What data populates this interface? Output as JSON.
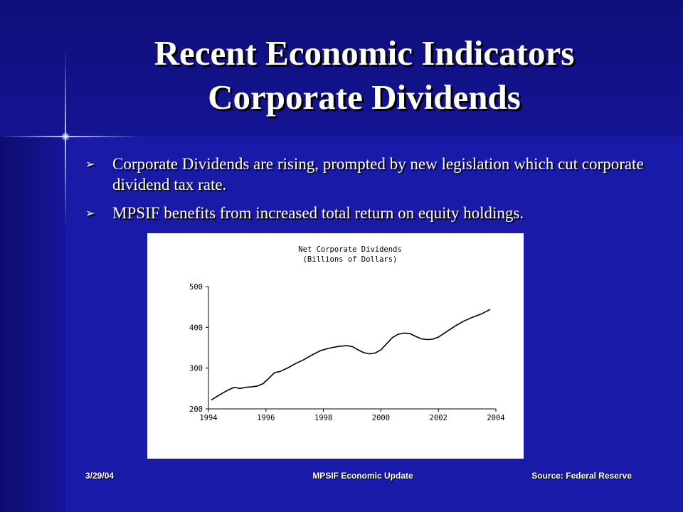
{
  "slide": {
    "title_line1": "Recent Economic Indicators",
    "title_line2": "Corporate Dividends",
    "bullets": [
      {
        "icon": "arrowhead-bullet-icon",
        "text": "Corporate Dividends are rising, prompted by new legislation which cut corporate dividend tax rate."
      },
      {
        "icon": "arrowhead-bullet-icon",
        "text": "MPSIF benefits from increased total return on equity holdings."
      }
    ],
    "footer": {
      "date": "3/29/04",
      "center": "MPSIF Economic Update",
      "source": "Source: Federal Reserve"
    },
    "colors": {
      "background": "#1a1aa8",
      "text": "#ffffff",
      "chart_background": "#ffffff"
    }
  },
  "chart_data": {
    "type": "line",
    "title": "Net Corporate Dividends",
    "subtitle": "(Billions of Dollars)",
    "xlabel": "",
    "ylabel": "",
    "xlim": [
      1994,
      2004
    ],
    "ylim": [
      200,
      500
    ],
    "xticks": [
      1994,
      1996,
      1998,
      2000,
      2002,
      2004
    ],
    "yticks": [
      200,
      300,
      400,
      500
    ],
    "grid": false,
    "series": [
      {
        "x": [
          1994.1,
          1994.4,
          1994.7,
          1994.9,
          1995.1,
          1995.3,
          1995.5,
          1995.7,
          1995.9,
          1996.1,
          1996.3,
          1996.5,
          1996.8,
          1997.0,
          1997.3,
          1997.6,
          1997.9,
          1998.2,
          1998.5,
          1998.8,
          1999.0,
          1999.2,
          1999.4,
          1999.6,
          1999.8,
          2000.0,
          2000.2,
          2000.4,
          2000.6,
          2000.8,
          2001.0,
          2001.2,
          2001.4,
          2001.6,
          2001.8,
          2002.0,
          2002.3,
          2002.6,
          2002.9,
          2003.2,
          2003.5,
          2003.8
        ],
        "values": [
          222,
          235,
          247,
          253,
          250,
          253,
          254,
          256,
          262,
          275,
          289,
          292,
          302,
          310,
          320,
          332,
          343,
          349,
          353,
          355,
          353,
          345,
          338,
          335,
          337,
          345,
          360,
          375,
          383,
          386,
          385,
          378,
          372,
          370,
          371,
          376,
          390,
          404,
          416,
          425,
          433,
          444
        ]
      }
    ]
  }
}
